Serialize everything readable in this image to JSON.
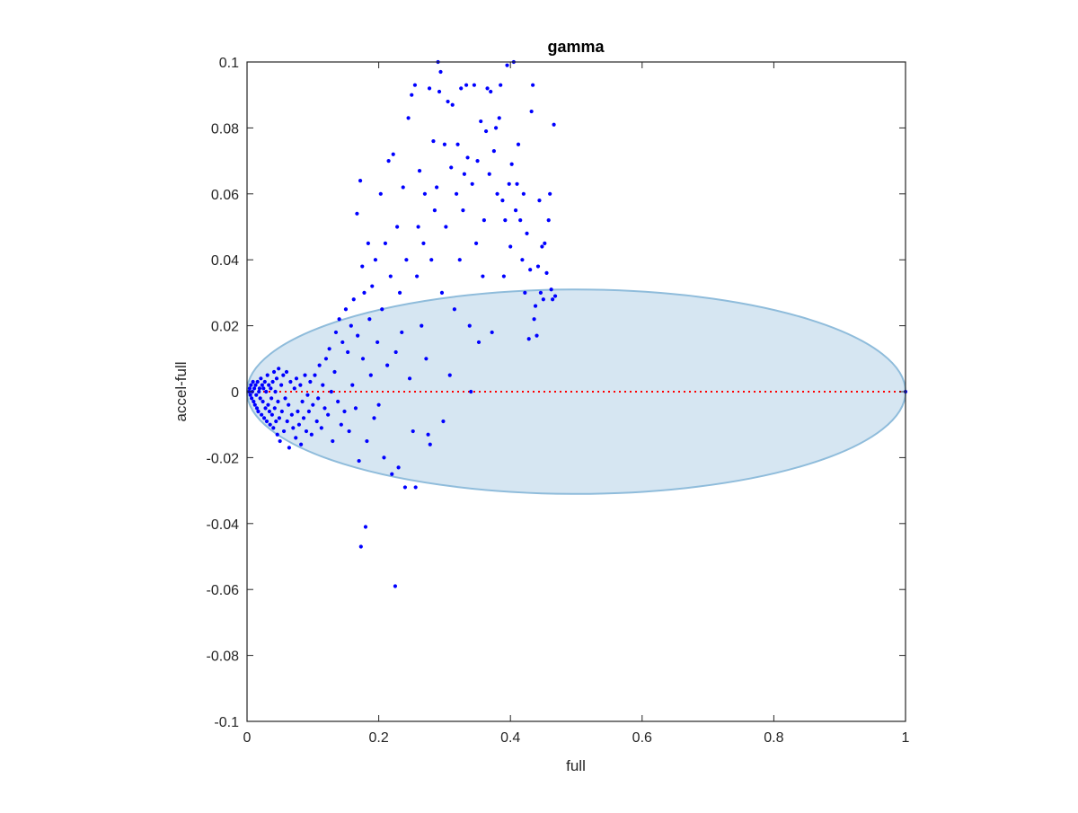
{
  "chart_data": {
    "type": "scatter",
    "title": "gamma",
    "xlabel": "full",
    "ylabel": "accel-full",
    "xlim": [
      0,
      1
    ],
    "ylim": [
      -0.1,
      0.1
    ],
    "xticks": [
      0,
      0.2,
      0.4,
      0.6,
      0.8,
      1
    ],
    "xtick_labels": [
      "0",
      "0.2",
      "0.4",
      "0.6",
      "0.8",
      "1"
    ],
    "yticks": [
      -0.1,
      -0.08,
      -0.06,
      -0.04,
      -0.02,
      0,
      0.02,
      0.04,
      0.06,
      0.08,
      0.1
    ],
    "ytick_labels": [
      "-0.1",
      "-0.08",
      "-0.06",
      "-0.04",
      "-0.02",
      "0",
      "0.02",
      "0.04",
      "0.06",
      "0.08",
      "0.1"
    ],
    "grid": false,
    "ellipse": {
      "cx": 0.5,
      "cy": 0,
      "rx": 0.5,
      "ry": 0.031,
      "fill": "#d6e6f2",
      "stroke": "#8fbcdb"
    },
    "reference_line": {
      "y": 0,
      "color": "#ff0000",
      "style": "dotted"
    },
    "marker_color": "#0000ff",
    "series": [
      {
        "values": [
          [
            0.003,
            0.0
          ],
          [
            0.004,
            0.001
          ],
          [
            0.005,
            -0.001
          ],
          [
            0.006,
            0.002
          ],
          [
            0.007,
            -0.002
          ],
          [
            0.008,
            0.0
          ],
          [
            0.009,
            0.003
          ],
          [
            0.01,
            -0.003
          ],
          [
            0.011,
            0.001
          ],
          [
            0.012,
            -0.004
          ],
          [
            0.013,
            0.002
          ],
          [
            0.014,
            -0.001
          ],
          [
            0.015,
            -0.005
          ],
          [
            0.016,
            0.003
          ],
          [
            0.017,
            -0.006
          ],
          [
            0.018,
            0.0
          ],
          [
            0.019,
            0.001
          ],
          [
            0.02,
            -0.002
          ],
          [
            0.021,
            0.004
          ],
          [
            0.022,
            -0.007
          ],
          [
            0.023,
            0.002
          ],
          [
            0.024,
            -0.003
          ],
          [
            0.025,
            0.001
          ],
          [
            0.026,
            -0.008
          ],
          [
            0.027,
            0.003
          ],
          [
            0.028,
            -0.005
          ],
          [
            0.029,
            0.0
          ],
          [
            0.03,
            -0.009
          ],
          [
            0.031,
            0.005
          ],
          [
            0.032,
            -0.004
          ],
          [
            0.033,
            0.002
          ],
          [
            0.034,
            -0.006
          ],
          [
            0.035,
            -0.01
          ],
          [
            0.036,
            0.001
          ],
          [
            0.037,
            -0.002
          ],
          [
            0.038,
            -0.007
          ],
          [
            0.039,
            0.003
          ],
          [
            0.04,
            -0.011
          ],
          [
            0.041,
            0.006
          ],
          [
            0.042,
            -0.005
          ],
          [
            0.043,
            0.0
          ],
          [
            0.044,
            -0.009
          ],
          [
            0.045,
            0.004
          ],
          [
            0.046,
            -0.013
          ],
          [
            0.047,
            -0.003
          ],
          [
            0.048,
            0.007
          ],
          [
            0.049,
            -0.008
          ],
          [
            0.05,
            -0.015
          ],
          [
            0.052,
            0.002
          ],
          [
            0.053,
            -0.006
          ],
          [
            0.055,
            0.005
          ],
          [
            0.056,
            -0.012
          ],
          [
            0.058,
            -0.002
          ],
          [
            0.06,
            0.006
          ],
          [
            0.061,
            -0.009
          ],
          [
            0.063,
            -0.004
          ],
          [
            0.064,
            -0.017
          ],
          [
            0.066,
            0.003
          ],
          [
            0.068,
            -0.007
          ],
          [
            0.07,
            -0.011
          ],
          [
            0.072,
            0.001
          ],
          [
            0.074,
            -0.014
          ],
          [
            0.075,
            0.004
          ],
          [
            0.077,
            -0.006
          ],
          [
            0.079,
            -0.01
          ],
          [
            0.081,
            0.002
          ],
          [
            0.082,
            -0.016
          ],
          [
            0.084,
            -0.003
          ],
          [
            0.086,
            -0.008
          ],
          [
            0.088,
            0.005
          ],
          [
            0.09,
            -0.012
          ],
          [
            0.092,
            -0.001
          ],
          [
            0.094,
            -0.006
          ],
          [
            0.096,
            0.003
          ],
          [
            0.098,
            -0.013
          ],
          [
            0.1,
            -0.004
          ],
          [
            0.103,
            0.005
          ],
          [
            0.106,
            -0.009
          ],
          [
            0.108,
            -0.002
          ],
          [
            0.11,
            0.008
          ],
          [
            0.113,
            -0.011
          ],
          [
            0.115,
            0.002
          ],
          [
            0.118,
            -0.005
          ],
          [
            0.12,
            0.01
          ],
          [
            0.123,
            -0.007
          ],
          [
            0.125,
            0.013
          ],
          [
            0.128,
            0.0
          ],
          [
            0.13,
            -0.015
          ],
          [
            0.133,
            0.006
          ],
          [
            0.135,
            0.018
          ],
          [
            0.138,
            -0.003
          ],
          [
            0.14,
            0.022
          ],
          [
            0.143,
            -0.01
          ],
          [
            0.145,
            0.015
          ],
          [
            0.148,
            -0.006
          ],
          [
            0.15,
            0.025
          ],
          [
            0.153,
            0.012
          ],
          [
            0.155,
            -0.012
          ],
          [
            0.158,
            0.02
          ],
          [
            0.16,
            0.002
          ],
          [
            0.162,
            0.028
          ],
          [
            0.165,
            -0.005
          ],
          [
            0.167,
            0.054
          ],
          [
            0.168,
            0.017
          ],
          [
            0.17,
            -0.021
          ],
          [
            0.172,
            0.064
          ],
          [
            0.173,
            -0.047
          ],
          [
            0.175,
            0.038
          ],
          [
            0.176,
            0.01
          ],
          [
            0.178,
            0.03
          ],
          [
            0.18,
            -0.041
          ],
          [
            0.182,
            -0.015
          ],
          [
            0.184,
            0.045
          ],
          [
            0.186,
            0.022
          ],
          [
            0.188,
            0.005
          ],
          [
            0.19,
            0.032
          ],
          [
            0.193,
            -0.008
          ],
          [
            0.195,
            0.04
          ],
          [
            0.198,
            0.015
          ],
          [
            0.2,
            -0.004
          ],
          [
            0.203,
            0.06
          ],
          [
            0.205,
            0.025
          ],
          [
            0.208,
            -0.02
          ],
          [
            0.21,
            0.045
          ],
          [
            0.213,
            0.008
          ],
          [
            0.215,
            0.07
          ],
          [
            0.218,
            0.035
          ],
          [
            0.22,
            -0.025
          ],
          [
            0.222,
            0.072
          ],
          [
            0.225,
            -0.059
          ],
          [
            0.226,
            0.012
          ],
          [
            0.228,
            0.05
          ],
          [
            0.23,
            -0.023
          ],
          [
            0.232,
            0.03
          ],
          [
            0.235,
            0.018
          ],
          [
            0.237,
            0.062
          ],
          [
            0.24,
            -0.029
          ],
          [
            0.242,
            0.04
          ],
          [
            0.245,
            0.083
          ],
          [
            0.247,
            0.004
          ],
          [
            0.25,
            0.09
          ],
          [
            0.252,
            -0.012
          ],
          [
            0.255,
            0.093
          ],
          [
            0.256,
            -0.029
          ],
          [
            0.258,
            0.035
          ],
          [
            0.26,
            0.05
          ],
          [
            0.262,
            0.067
          ],
          [
            0.265,
            0.02
          ],
          [
            0.268,
            0.045
          ],
          [
            0.27,
            0.06
          ],
          [
            0.272,
            0.01
          ],
          [
            0.275,
            -0.013
          ],
          [
            0.277,
            0.092
          ],
          [
            0.278,
            -0.016
          ],
          [
            0.28,
            0.04
          ],
          [
            0.283,
            0.076
          ],
          [
            0.285,
            0.055
          ],
          [
            0.288,
            0.062
          ],
          [
            0.29,
            0.1
          ],
          [
            0.292,
            0.091
          ],
          [
            0.294,
            0.097
          ],
          [
            0.296,
            0.03
          ],
          [
            0.298,
            -0.009
          ],
          [
            0.3,
            0.075
          ],
          [
            0.302,
            0.05
          ],
          [
            0.305,
            0.088
          ],
          [
            0.308,
            0.005
          ],
          [
            0.31,
            0.068
          ],
          [
            0.312,
            0.087
          ],
          [
            0.315,
            0.025
          ],
          [
            0.318,
            0.06
          ],
          [
            0.32,
            0.075
          ],
          [
            0.323,
            0.04
          ],
          [
            0.325,
            0.092
          ],
          [
            0.328,
            0.055
          ],
          [
            0.33,
            0.066
          ],
          [
            0.333,
            0.093
          ],
          [
            0.335,
            0.071
          ],
          [
            0.338,
            0.02
          ],
          [
            0.34,
            0.0
          ],
          [
            0.342,
            0.063
          ],
          [
            0.345,
            0.093
          ],
          [
            0.348,
            0.045
          ],
          [
            0.35,
            0.07
          ],
          [
            0.352,
            0.015
          ],
          [
            0.355,
            0.082
          ],
          [
            0.358,
            0.035
          ],
          [
            0.36,
            0.052
          ],
          [
            0.363,
            0.079
          ],
          [
            0.365,
            0.092
          ],
          [
            0.368,
            0.066
          ],
          [
            0.37,
            0.091
          ],
          [
            0.372,
            0.018
          ],
          [
            0.375,
            0.073
          ],
          [
            0.378,
            0.08
          ],
          [
            0.38,
            0.06
          ],
          [
            0.383,
            0.083
          ],
          [
            0.385,
            0.093
          ],
          [
            0.388,
            0.058
          ],
          [
            0.39,
            0.035
          ],
          [
            0.392,
            0.052
          ],
          [
            0.395,
            0.099
          ],
          [
            0.398,
            0.063
          ],
          [
            0.4,
            0.044
          ],
          [
            0.402,
            0.069
          ],
          [
            0.405,
            0.1
          ],
          [
            0.408,
            0.055
          ],
          [
            0.41,
            0.063
          ],
          [
            0.412,
            0.075
          ],
          [
            0.415,
            0.052
          ],
          [
            0.418,
            0.04
          ],
          [
            0.42,
            0.06
          ],
          [
            0.422,
            0.03
          ],
          [
            0.425,
            0.048
          ],
          [
            0.428,
            0.016
          ],
          [
            0.43,
            0.037
          ],
          [
            0.432,
            0.085
          ],
          [
            0.434,
            0.093
          ],
          [
            0.436,
            0.022
          ],
          [
            0.438,
            0.026
          ],
          [
            0.44,
            0.017
          ],
          [
            0.442,
            0.038
          ],
          [
            0.444,
            0.058
          ],
          [
            0.446,
            0.03
          ],
          [
            0.448,
            0.044
          ],
          [
            0.45,
            0.028
          ],
          [
            0.452,
            0.045
          ],
          [
            0.455,
            0.036
          ],
          [
            0.458,
            0.052
          ],
          [
            0.46,
            0.06
          ],
          [
            0.462,
            0.031
          ],
          [
            0.464,
            0.028
          ],
          [
            0.466,
            0.081
          ],
          [
            0.468,
            0.029
          ],
          [
            1.0,
            0.0
          ]
        ]
      }
    ]
  }
}
